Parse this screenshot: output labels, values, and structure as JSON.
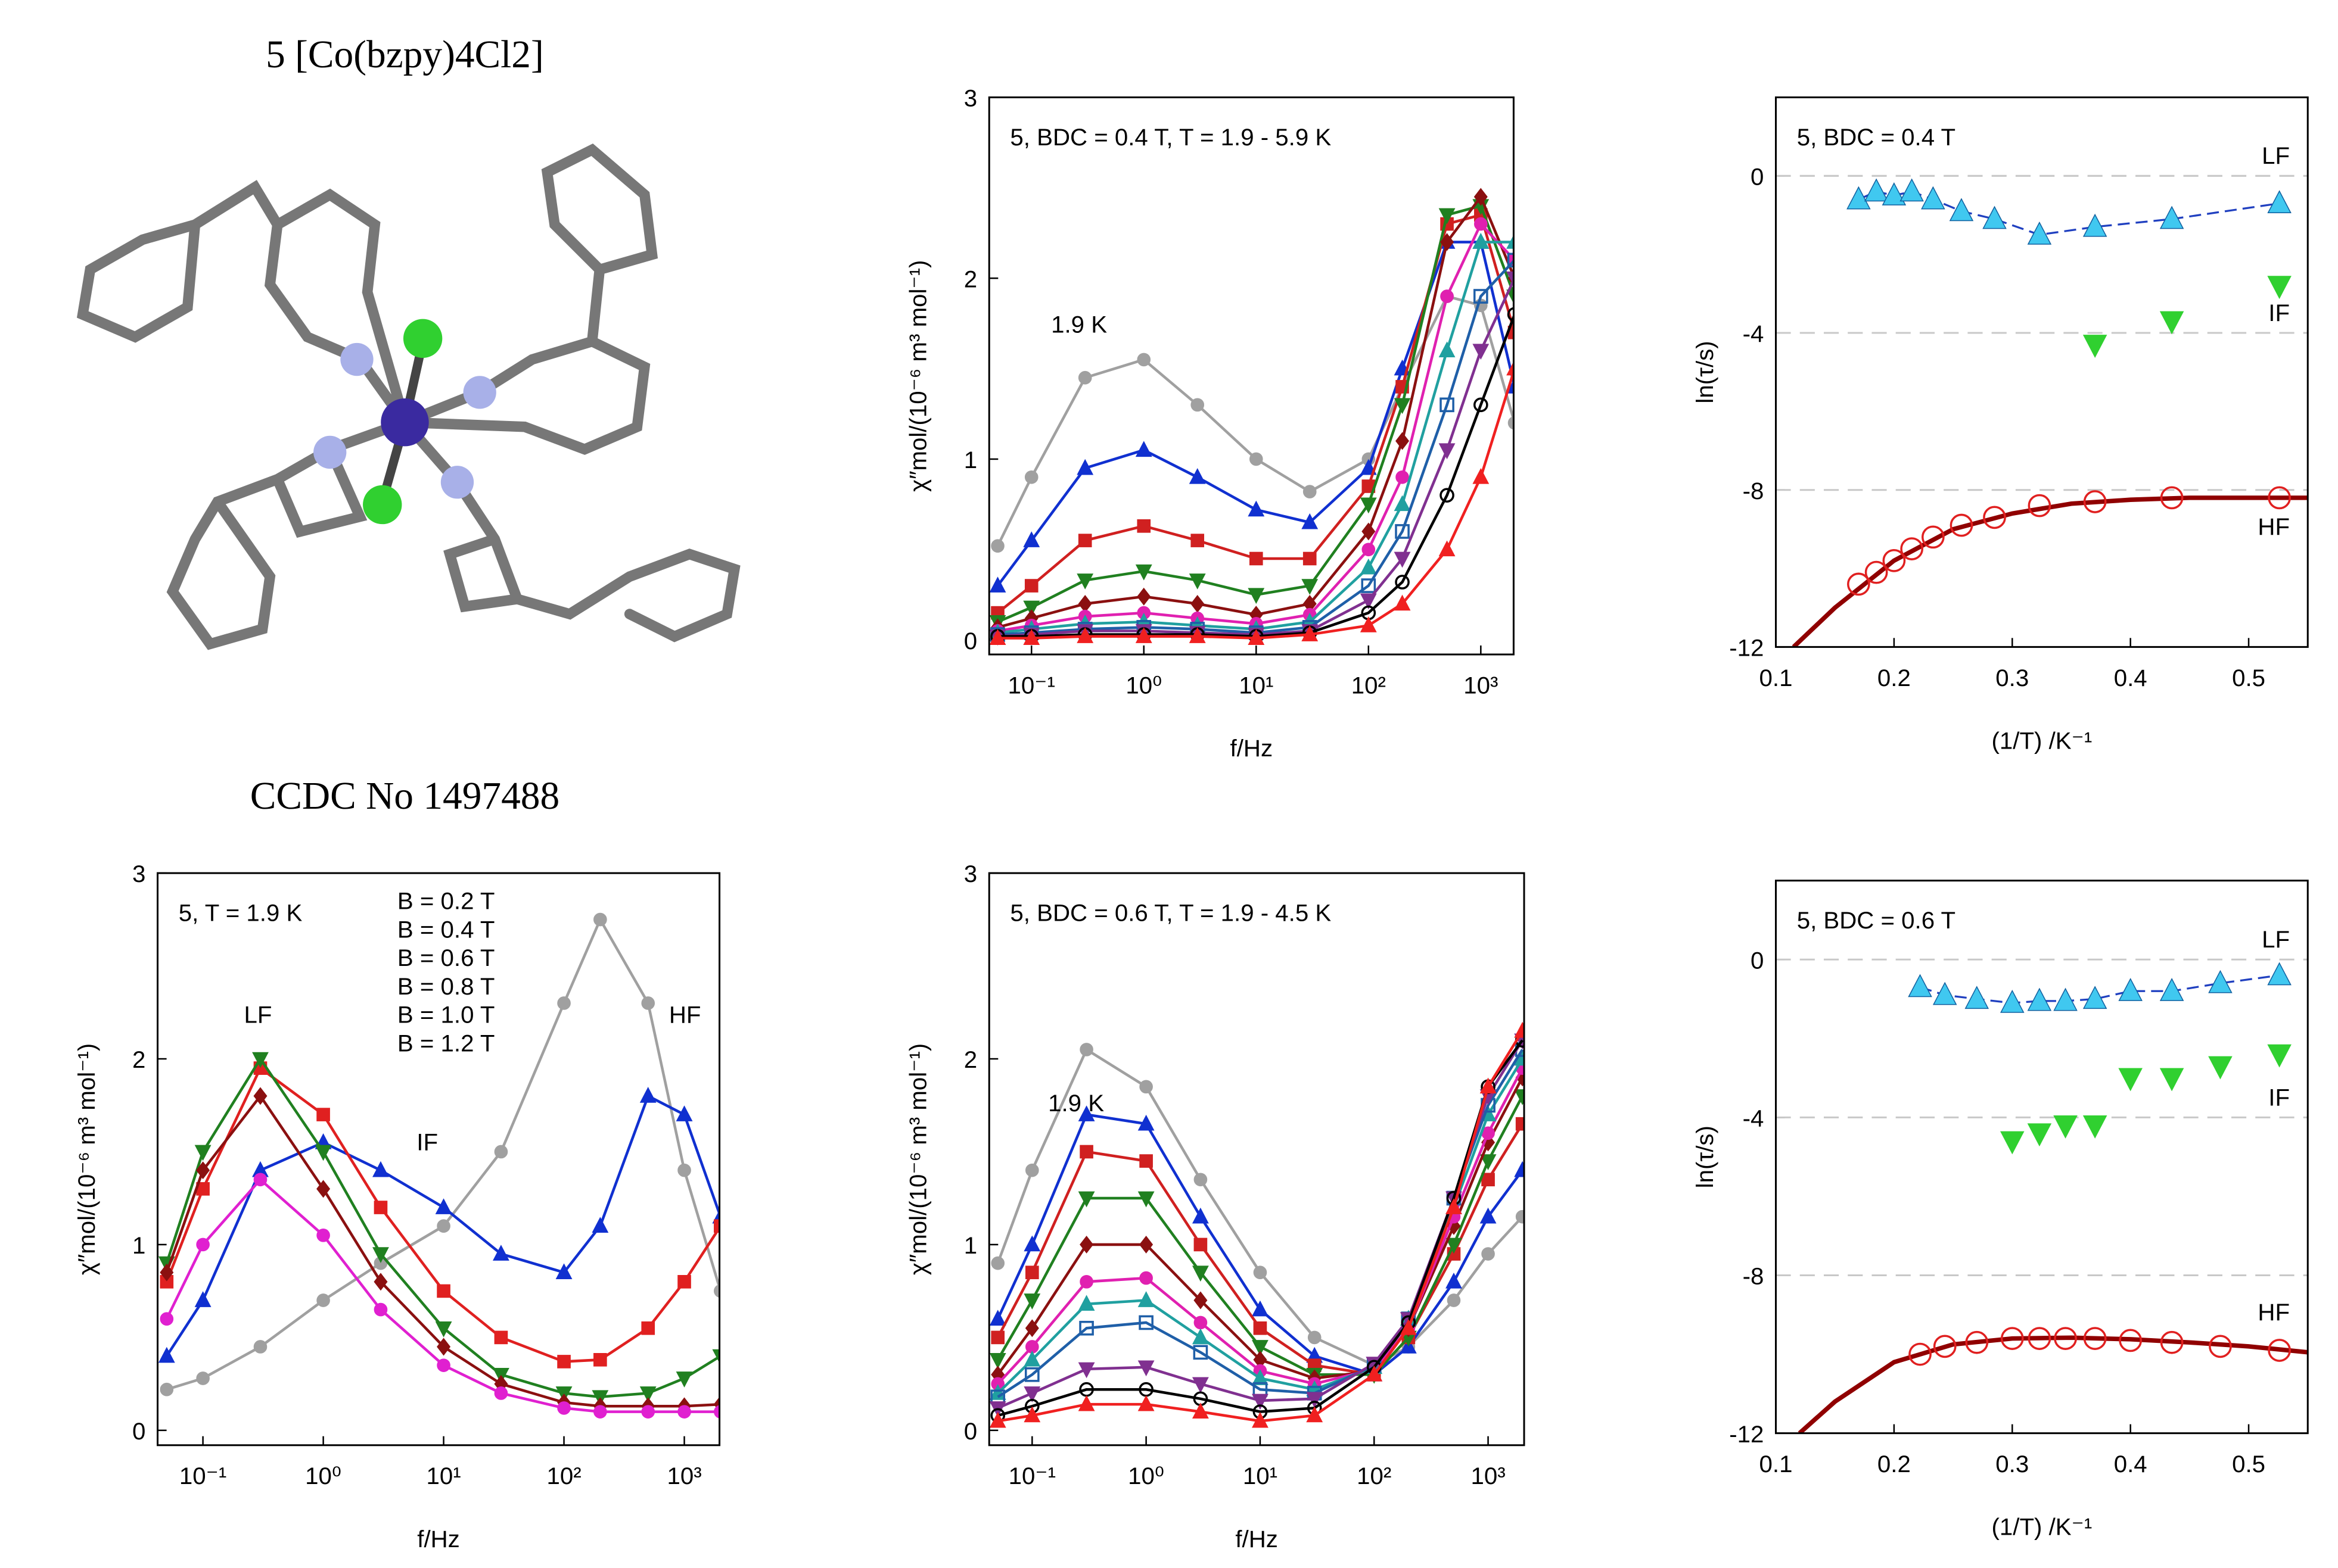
{
  "header": {
    "title": "5 [Co(bzpy)4Cl2]",
    "ccdc": "CCDC No 1497488"
  },
  "chart_data": [
    {
      "type": "line",
      "title": "5, BDC = 0.4 T, T = 1.9 - 5.9 K",
      "xlabel": "f/Hz",
      "ylabel": "χ″mol/(10⁻⁶ m³ mol⁻¹)",
      "annotations": [
        "1.9 K"
      ],
      "xlog": true,
      "xlim": [
        0.042,
        1960
      ],
      "xticks": [
        {
          "value": 0.1,
          "label": "10⁻¹"
        },
        {
          "value": 1,
          "label": "10⁰"
        },
        {
          "value": 10,
          "label": "10¹"
        },
        {
          "value": 100,
          "label": "10²"
        },
        {
          "value": 1000,
          "label": "10³"
        }
      ],
      "ylim": [
        -0.08,
        3
      ],
      "yticks": [
        0,
        1,
        2,
        3
      ],
      "x": [
        0.05,
        0.1,
        0.3,
        1,
        3,
        10,
        30,
        100,
        200,
        500,
        1000,
        2000
      ],
      "series": [
        {
          "color": "#a0a0a0",
          "marker": "circle",
          "values": [
            0.52,
            0.9,
            1.45,
            1.55,
            1.3,
            1.0,
            0.82,
            1.0,
            1.4,
            1.9,
            1.85,
            1.2
          ]
        },
        {
          "color": "#1030d0",
          "marker": "triangle-up",
          "values": [
            0.3,
            0.55,
            0.95,
            1.05,
            0.9,
            0.72,
            0.65,
            0.95,
            1.5,
            2.2,
            2.2,
            1.4
          ]
        },
        {
          "color": "#d02020",
          "marker": "square",
          "values": [
            0.15,
            0.3,
            0.55,
            0.63,
            0.55,
            0.45,
            0.45,
            0.85,
            1.4,
            2.3,
            2.35,
            1.7
          ]
        },
        {
          "color": "#208020",
          "marker": "triangle-down",
          "values": [
            0.1,
            0.18,
            0.33,
            0.38,
            0.33,
            0.25,
            0.3,
            0.75,
            1.3,
            2.35,
            2.4,
            1.9
          ]
        },
        {
          "color": "#8b1010",
          "marker": "diamond",
          "values": [
            0.07,
            0.12,
            0.2,
            0.24,
            0.2,
            0.14,
            0.2,
            0.6,
            1.1,
            2.2,
            2.45,
            2.0
          ]
        },
        {
          "color": "#e020b0",
          "marker": "circle",
          "values": [
            0.05,
            0.08,
            0.13,
            0.15,
            0.12,
            0.09,
            0.14,
            0.5,
            0.9,
            1.9,
            2.3,
            2.1
          ]
        },
        {
          "color": "#20a0a0",
          "marker": "triangle-up",
          "values": [
            0.04,
            0.06,
            0.09,
            0.1,
            0.08,
            0.06,
            0.1,
            0.4,
            0.75,
            1.6,
            2.2,
            2.2
          ]
        },
        {
          "color": "#1f5fa8",
          "marker": "square-open",
          "values": [
            0.03,
            0.04,
            0.06,
            0.07,
            0.06,
            0.04,
            0.07,
            0.3,
            0.6,
            1.3,
            1.9,
            2.1
          ]
        },
        {
          "color": "#803090",
          "marker": "triangle-down",
          "values": [
            0.02,
            0.03,
            0.05,
            0.05,
            0.04,
            0.03,
            0.05,
            0.22,
            0.45,
            1.05,
            1.6,
            2.0
          ]
        },
        {
          "color": "#000000",
          "marker": "circle-open",
          "values": [
            0.02,
            0.02,
            0.03,
            0.03,
            0.03,
            0.02,
            0.04,
            0.15,
            0.32,
            0.8,
            1.3,
            1.8
          ]
        },
        {
          "color": "#f02020",
          "marker": "triangle-up",
          "values": [
            0.01,
            0.01,
            0.02,
            0.02,
            0.02,
            0.01,
            0.03,
            0.08,
            0.2,
            0.5,
            0.9,
            1.5
          ]
        }
      ]
    },
    {
      "type": "scatter",
      "title": "5, BDC = 0.4 T",
      "xlabel": "(1/T) /K⁻¹",
      "ylabel": "ln(τ/s)",
      "xlim": [
        0.1,
        0.55
      ],
      "xticks": [
        0.1,
        0.2,
        0.3,
        0.4,
        0.5
      ],
      "ylim": [
        -12,
        2
      ],
      "yticks": [
        -12,
        -8,
        -4,
        0
      ],
      "ref_lines": [
        {
          "value": 0,
          "label": "LF"
        },
        {
          "value": -4,
          "label": "IF"
        },
        {
          "value": -8,
          "label": "HF"
        }
      ],
      "series": [
        {
          "color": "#40c8f0",
          "marker": "triangle-up",
          "line_style": "dashed",
          "line_color": "#2040c0",
          "x": [
            0.17,
            0.185,
            0.2,
            0.215,
            0.233,
            0.257,
            0.285,
            0.323,
            0.37,
            0.435,
            0.526
          ],
          "values": [
            -0.6,
            -0.4,
            -0.5,
            -0.4,
            -0.6,
            -0.9,
            -1.1,
            -1.5,
            -1.3,
            -1.1,
            -0.7
          ]
        },
        {
          "color": "#30d030",
          "marker": "triangle-down",
          "x": [
            0.37,
            0.435,
            0.526
          ],
          "values": [
            -4.3,
            -3.7,
            -2.8
          ]
        },
        {
          "color": "#e02020",
          "marker": "circle-open",
          "x": [
            0.17,
            0.185,
            0.2,
            0.215,
            0.233,
            0.257,
            0.285,
            0.323,
            0.37,
            0.435,
            0.526
          ],
          "values": [
            -10.4,
            -10.1,
            -9.8,
            -9.5,
            -9.2,
            -8.9,
            -8.7,
            -8.4,
            -8.3,
            -8.2,
            -8.2
          ]
        }
      ],
      "fit": {
        "color": "#900000",
        "x": [
          0.115,
          0.15,
          0.2,
          0.25,
          0.3,
          0.35,
          0.4,
          0.45,
          0.5,
          0.55
        ],
        "values": [
          -12,
          -11,
          -9.8,
          -9,
          -8.6,
          -8.35,
          -8.25,
          -8.2,
          -8.2,
          -8.2
        ]
      }
    },
    {
      "type": "line",
      "title": "5, T = 1.9 K",
      "xlabel": "f/Hz",
      "ylabel": "χ″mol/(10⁻⁶ m³ mol⁻¹)",
      "annotations": [
        "LF",
        "IF",
        "HF"
      ],
      "legend": "top",
      "xlog": true,
      "xlim": [
        0.042,
        1960
      ],
      "xticks": [
        {
          "value": 0.1,
          "label": "10⁻¹"
        },
        {
          "value": 1,
          "label": "10⁰"
        },
        {
          "value": 10,
          "label": "10¹"
        },
        {
          "value": 100,
          "label": "10²"
        },
        {
          "value": 1000,
          "label": "10³"
        }
      ],
      "ylim": [
        -0.08,
        3
      ],
      "yticks": [
        0,
        1,
        2,
        3
      ],
      "x": [
        0.05,
        0.1,
        0.3,
        1,
        3,
        10,
        30,
        100,
        200,
        500,
        1000,
        2000
      ],
      "series": [
        {
          "name": "B = 0.2 T",
          "color": "#a0a0a0",
          "marker": "circle",
          "values": [
            0.22,
            0.28,
            0.45,
            0.7,
            0.9,
            1.1,
            1.5,
            2.3,
            2.75,
            2.3,
            1.4,
            0.75
          ]
        },
        {
          "name": "B = 0.4 T",
          "color": "#1030d0",
          "marker": "triangle-up",
          "values": [
            0.4,
            0.7,
            1.4,
            1.55,
            1.4,
            1.2,
            0.95,
            0.85,
            1.1,
            1.8,
            1.7,
            1.15
          ]
        },
        {
          "name": "B = 0.6 T",
          "color": "#e02020",
          "marker": "square",
          "values": [
            0.8,
            1.3,
            1.95,
            1.7,
            1.2,
            0.75,
            0.5,
            0.37,
            0.38,
            0.55,
            0.8,
            1.1
          ]
        },
        {
          "name": "B = 0.8 T",
          "color": "#208020",
          "marker": "triangle-down",
          "values": [
            0.9,
            1.5,
            2.0,
            1.5,
            0.95,
            0.55,
            0.3,
            0.2,
            0.18,
            0.2,
            0.28,
            0.4
          ]
        },
        {
          "name": "B = 1.0 T",
          "color": "#8b1010",
          "marker": "diamond",
          "values": [
            0.85,
            1.4,
            1.8,
            1.3,
            0.8,
            0.45,
            0.25,
            0.15,
            0.13,
            0.13,
            0.13,
            0.14
          ]
        },
        {
          "name": "B = 1.2 T",
          "color": "#e020d0",
          "marker": "circle",
          "values": [
            0.6,
            1.0,
            1.35,
            1.05,
            0.65,
            0.35,
            0.2,
            0.12,
            0.1,
            0.1,
            0.1,
            0.1
          ]
        }
      ]
    },
    {
      "type": "line",
      "title": "5, BDC = 0.6 T, T = 1.9 - 4.5 K",
      "xlabel": "f/Hz",
      "ylabel": "χ″mol/(10⁻⁶ m³ mol⁻¹)",
      "annotations": [
        "1.9 K"
      ],
      "xlog": true,
      "xlim": [
        0.042,
        2070
      ],
      "xticks": [
        {
          "value": 0.1,
          "label": "10⁻¹"
        },
        {
          "value": 1,
          "label": "10⁰"
        },
        {
          "value": 10,
          "label": "10¹"
        },
        {
          "value": 100,
          "label": "10²"
        },
        {
          "value": 1000,
          "label": "10³"
        }
      ],
      "ylim": [
        -0.08,
        3
      ],
      "yticks": [
        0,
        1,
        2,
        3
      ],
      "x": [
        0.05,
        0.1,
        0.3,
        1,
        3,
        10,
        30,
        100,
        200,
        500,
        1000,
        2000
      ],
      "series": [
        {
          "color": "#a0a0a0",
          "marker": "circle",
          "values": [
            0.9,
            1.4,
            2.05,
            1.85,
            1.35,
            0.85,
            0.5,
            0.35,
            0.45,
            0.7,
            0.95,
            1.15
          ]
        },
        {
          "color": "#1030d0",
          "marker": "triangle-up",
          "values": [
            0.6,
            1.0,
            1.7,
            1.65,
            1.15,
            0.65,
            0.4,
            0.3,
            0.45,
            0.8,
            1.15,
            1.4
          ]
        },
        {
          "color": "#d02020",
          "marker": "square",
          "values": [
            0.5,
            0.85,
            1.5,
            1.45,
            1.0,
            0.55,
            0.35,
            0.3,
            0.5,
            0.95,
            1.35,
            1.65
          ]
        },
        {
          "color": "#208020",
          "marker": "triangle-down",
          "values": [
            0.38,
            0.7,
            1.25,
            1.25,
            0.85,
            0.45,
            0.3,
            0.3,
            0.5,
            1.0,
            1.45,
            1.8
          ]
        },
        {
          "color": "#8b1010",
          "marker": "diamond",
          "values": [
            0.3,
            0.55,
            1.0,
            1.0,
            0.7,
            0.38,
            0.28,
            0.32,
            0.55,
            1.1,
            1.55,
            1.9
          ]
        },
        {
          "color": "#e020b0",
          "marker": "circle",
          "values": [
            0.25,
            0.45,
            0.8,
            0.82,
            0.58,
            0.32,
            0.25,
            0.33,
            0.55,
            1.15,
            1.6,
            1.95
          ]
        },
        {
          "color": "#20a0a0",
          "marker": "triangle-up",
          "values": [
            0.2,
            0.38,
            0.68,
            0.7,
            0.5,
            0.28,
            0.22,
            0.34,
            0.6,
            1.2,
            1.7,
            2.0
          ]
        },
        {
          "color": "#1f5fa8",
          "marker": "square-open",
          "values": [
            0.18,
            0.3,
            0.55,
            0.58,
            0.42,
            0.22,
            0.2,
            0.35,
            0.6,
            1.25,
            1.75,
            2.05
          ]
        },
        {
          "color": "#803090",
          "marker": "triangle-down",
          "values": [
            0.12,
            0.2,
            0.33,
            0.34,
            0.25,
            0.16,
            0.17,
            0.36,
            0.6,
            1.25,
            1.8,
            2.1
          ]
        },
        {
          "color": "#000000",
          "marker": "circle-open",
          "values": [
            0.08,
            0.13,
            0.22,
            0.22,
            0.17,
            0.1,
            0.12,
            0.34,
            0.58,
            1.25,
            1.85,
            2.1
          ]
        },
        {
          "color": "#f02020",
          "marker": "triangle-up",
          "values": [
            0.05,
            0.08,
            0.14,
            0.14,
            0.1,
            0.05,
            0.08,
            0.3,
            0.55,
            1.2,
            1.85,
            2.15
          ]
        }
      ]
    },
    {
      "type": "scatter",
      "title": "5, BDC = 0.6 T",
      "xlabel": "(1/T) /K⁻¹",
      "ylabel": "ln(τ/s)",
      "xlim": [
        0.1,
        0.55
      ],
      "xticks": [
        0.1,
        0.2,
        0.3,
        0.4,
        0.5
      ],
      "ylim": [
        -12,
        2
      ],
      "yticks": [
        -12,
        -8,
        -4,
        0
      ],
      "ref_lines": [
        {
          "value": 0,
          "label": "LF"
        },
        {
          "value": -4,
          "label": "IF"
        },
        {
          "value": -8,
          "label": "HF"
        }
      ],
      "series": [
        {
          "color": "#40c8f0",
          "marker": "triangle-up",
          "line_style": "dashed",
          "line_color": "#2040c0",
          "x": [
            0.222,
            0.243,
            0.27,
            0.3,
            0.323,
            0.345,
            0.37,
            0.4,
            0.435,
            0.476,
            0.526
          ],
          "values": [
            -0.7,
            -0.9,
            -1.0,
            -1.1,
            -1.05,
            -1.05,
            -1.0,
            -0.8,
            -0.8,
            -0.6,
            -0.4
          ]
        },
        {
          "color": "#30d030",
          "marker": "triangle-down",
          "x": [
            0.3,
            0.323,
            0.345,
            0.37,
            0.4,
            0.435,
            0.476,
            0.526
          ],
          "values": [
            -4.6,
            -4.4,
            -4.2,
            -4.2,
            -3.0,
            -3.0,
            -2.7,
            -2.4
          ]
        },
        {
          "color": "#e02020",
          "marker": "circle-open",
          "x": [
            0.222,
            0.243,
            0.27,
            0.3,
            0.323,
            0.345,
            0.37,
            0.4,
            0.435,
            0.476,
            0.526
          ],
          "values": [
            -10.0,
            -9.8,
            -9.7,
            -9.6,
            -9.6,
            -9.6,
            -9.6,
            -9.65,
            -9.7,
            -9.8,
            -9.9
          ]
        }
      ],
      "fit": {
        "color": "#900000",
        "x": [
          0.12,
          0.15,
          0.2,
          0.25,
          0.3,
          0.35,
          0.4,
          0.45,
          0.5,
          0.55
        ],
        "values": [
          -12,
          -11.2,
          -10.2,
          -9.75,
          -9.6,
          -9.58,
          -9.62,
          -9.7,
          -9.8,
          -9.95
        ]
      }
    }
  ]
}
